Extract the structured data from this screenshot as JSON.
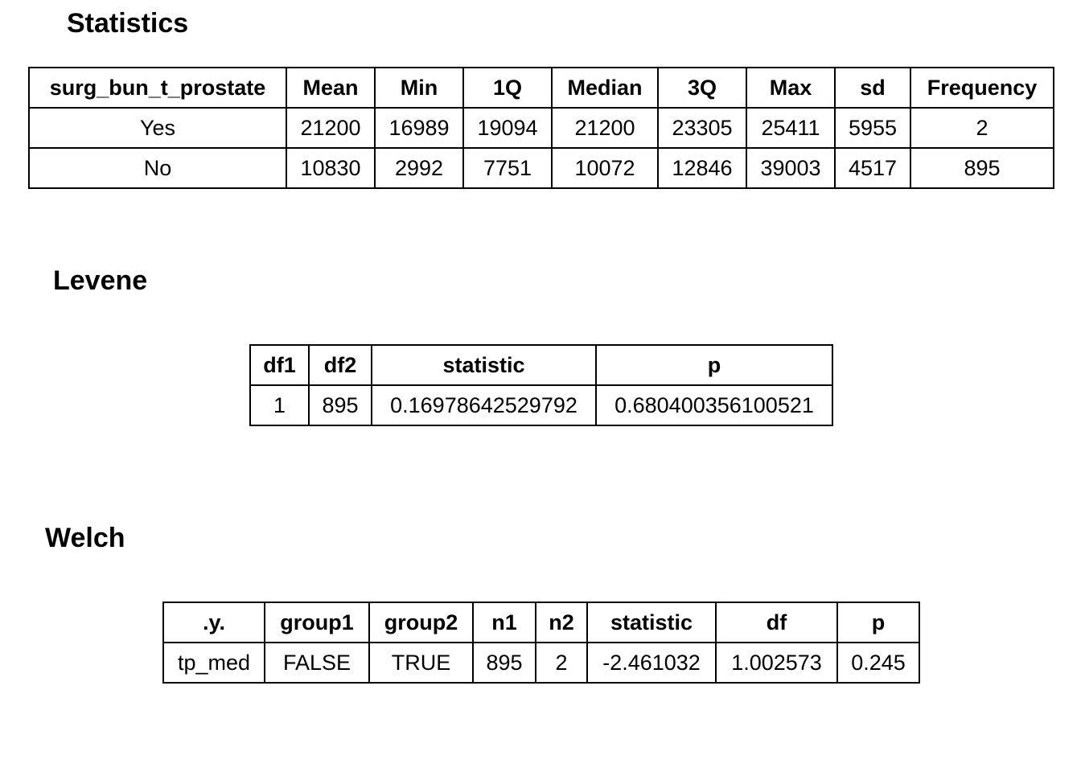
{
  "statistics": {
    "title": "Statistics",
    "table": {
      "header": [
        "surg_bun_t_prostate",
        "Mean",
        "Min",
        "1Q",
        "Median",
        "3Q",
        "Max",
        "sd",
        "Frequency"
      ],
      "rows": [
        [
          "Yes",
          "21200",
          "16989",
          "19094",
          "21200",
          "23305",
          "25411",
          "5955",
          "2"
        ],
        [
          "No",
          "10830",
          "2992",
          "7751",
          "10072",
          "12846",
          "39003",
          "4517",
          "895"
        ]
      ]
    }
  },
  "levene": {
    "title": "Levene",
    "table": {
      "header": [
        "df1",
        "df2",
        "statistic",
        "p"
      ],
      "rows": [
        [
          "1",
          "895",
          "0.16978642529792",
          "0.680400356100521"
        ]
      ]
    }
  },
  "welch": {
    "title": "Welch",
    "table": {
      "header": [
        ".y.",
        "group1",
        "group2",
        "n1",
        "n2",
        "statistic",
        "df",
        "p"
      ],
      "rows": [
        [
          "tp_med",
          "FALSE",
          "TRUE",
          "895",
          "2",
          "-2.461032",
          "1.002573",
          "0.245"
        ]
      ]
    }
  }
}
